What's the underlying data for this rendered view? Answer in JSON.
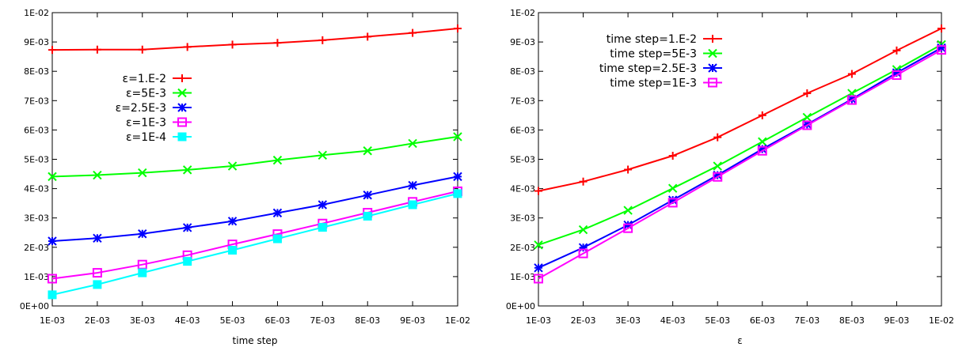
{
  "chart_data": [
    {
      "type": "line",
      "title": "",
      "xlabel": "time step",
      "ylabel": "",
      "xlim": [
        0.001,
        0.01
      ],
      "ylim": [
        0,
        0.01
      ],
      "grid": false,
      "legend_position": "middle-left",
      "x_ticks": [
        "1E-03",
        "2E-03",
        "3E-03",
        "4E-03",
        "5E-03",
        "6E-03",
        "7E-03",
        "8E-03",
        "9E-03",
        "1E-02"
      ],
      "y_ticks": [
        "0E+00",
        "1E-03",
        "2E-03",
        "3E-03",
        "4E-03",
        "5E-03",
        "6E-03",
        "7E-03",
        "8E-03",
        "9E-03",
        "1E-02"
      ],
      "x": [
        0.001,
        0.002,
        0.003,
        0.004,
        0.005,
        0.006,
        0.007,
        0.008,
        0.009,
        0.01
      ],
      "series": [
        {
          "name": "ε=1.E-2",
          "color": "#ff0000",
          "marker": "plus",
          "values": [
            0.00873,
            0.00874,
            0.00874,
            0.00883,
            0.00891,
            0.00897,
            0.00906,
            0.00918,
            0.00931,
            0.00946
          ]
        },
        {
          "name": "ε=5E-3",
          "color": "#00ff00",
          "marker": "cross",
          "values": [
            0.00441,
            0.00446,
            0.00454,
            0.00464,
            0.00477,
            0.00497,
            0.00514,
            0.00529,
            0.00554,
            0.00577
          ]
        },
        {
          "name": "ε=2.5E-3",
          "color": "#0000ff",
          "marker": "star",
          "values": [
            0.00221,
            0.00231,
            0.00246,
            0.00267,
            0.00289,
            0.00317,
            0.00345,
            0.00378,
            0.00411,
            0.00441
          ]
        },
        {
          "name": "ε=1E-3",
          "color": "#ff00ff",
          "marker": "square",
          "values": [
            0.00093,
            0.00113,
            0.00141,
            0.00173,
            0.0021,
            0.00245,
            0.00281,
            0.00318,
            0.00355,
            0.00391
          ]
        },
        {
          "name": "ε=1E-4",
          "color": "#00ffff",
          "marker": "filled-square",
          "values": [
            0.00038,
            0.00073,
            0.00113,
            0.00152,
            0.0019,
            0.00229,
            0.00268,
            0.00306,
            0.00345,
            0.00383
          ]
        }
      ]
    },
    {
      "type": "line",
      "title": "",
      "xlabel": "ε",
      "ylabel": "",
      "xlim": [
        0.001,
        0.01
      ],
      "ylim": [
        0,
        0.01
      ],
      "grid": false,
      "legend_position": "top-left",
      "x_ticks": [
        "1E-03",
        "2E-03",
        "3E-03",
        "4E-03",
        "5E-03",
        "6E-03",
        "7E-03",
        "8E-03",
        "9E-03",
        "1E-02"
      ],
      "y_ticks": [
        "0E+00",
        "1E-03",
        "2E-03",
        "3E-03",
        "4E-03",
        "5E-03",
        "6E-03",
        "7E-03",
        "8E-03",
        "9E-03",
        "1E-02"
      ],
      "x": [
        0.001,
        0.002,
        0.003,
        0.004,
        0.005,
        0.006,
        0.007,
        0.008,
        0.009,
        0.01
      ],
      "series": [
        {
          "name": "time step=1.E-2",
          "color": "#ff0000",
          "marker": "plus",
          "values": [
            0.00392,
            0.00424,
            0.00465,
            0.00512,
            0.00575,
            0.0065,
            0.00725,
            0.00791,
            0.00871,
            0.00946
          ]
        },
        {
          "name": "time step=5E-3",
          "color": "#00ff00",
          "marker": "cross",
          "values": [
            0.00208,
            0.0026,
            0.00326,
            0.00401,
            0.00477,
            0.0056,
            0.00643,
            0.00725,
            0.00806,
            0.00891
          ]
        },
        {
          "name": "time step=2.5E-3",
          "color": "#0000ff",
          "marker": "star",
          "values": [
            0.0013,
            0.00199,
            0.00276,
            0.00361,
            0.00446,
            0.00535,
            0.00619,
            0.00705,
            0.00795,
            0.0088
          ]
        },
        {
          "name": "time step=1E-3",
          "color": "#ff00ff",
          "marker": "square",
          "values": [
            0.00093,
            0.00179,
            0.00265,
            0.00352,
            0.0044,
            0.00529,
            0.00616,
            0.00702,
            0.00787,
            0.00873
          ]
        }
      ]
    }
  ]
}
